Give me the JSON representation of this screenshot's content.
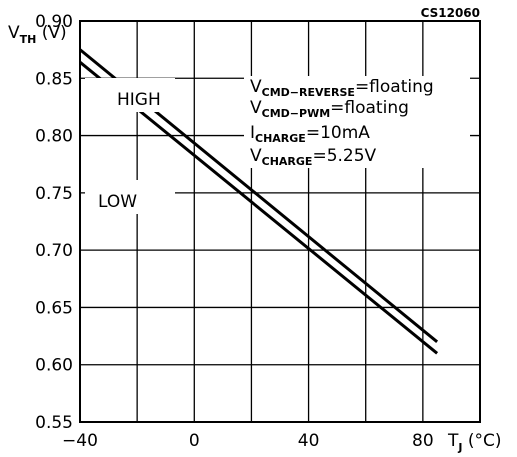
{
  "chart_data": {
    "type": "line",
    "code": "CS12060",
    "ylabel": {
      "main": "V",
      "sub": "TH",
      "unit": " (V)"
    },
    "xlabel": {
      "main": "T",
      "sub": "J",
      "unit": " (°C)"
    },
    "xlim": [
      -40,
      100
    ],
    "ylim": [
      0.55,
      0.9
    ],
    "x_ticks": [
      -40,
      0,
      40,
      80
    ],
    "x_tick_labels": [
      "−40",
      "0",
      "40",
      "80"
    ],
    "y_ticks": [
      0.55,
      0.6,
      0.65,
      0.7,
      0.75,
      0.8,
      0.85,
      0.9
    ],
    "y_tick_labels": [
      "0.55",
      "0.60",
      "0.65",
      "0.70",
      "0.75",
      "0.80",
      "0.85",
      "0.90"
    ],
    "grid": true,
    "series": [
      {
        "x": [
          -40,
          85
        ],
        "y": [
          0.875,
          0.62
        ]
      },
      {
        "x": [
          -40,
          85
        ],
        "y": [
          0.864,
          0.61
        ]
      }
    ],
    "regions": [
      "HIGH",
      "LOW"
    ],
    "conditions": [
      {
        "main": "V",
        "sub": "CMD−REVERSE",
        "value": "=floating"
      },
      {
        "main": "V",
        "sub": "CMD−PWM",
        "value": "=floating"
      },
      {
        "main": "I",
        "sub": "CHARGE",
        "value": "=10mA"
      },
      {
        "main": "V",
        "sub": "CHARGE",
        "value": "=5.25V"
      }
    ]
  }
}
